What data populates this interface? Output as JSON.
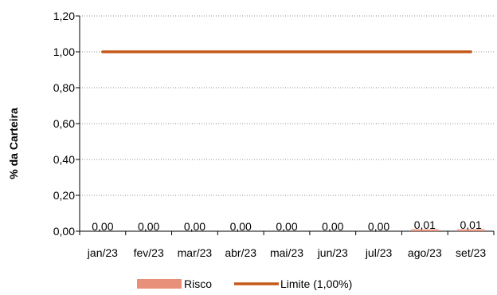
{
  "chart_data": {
    "type": "bar",
    "title": "",
    "xlabel": "",
    "ylabel": "% da Carteira",
    "ylim": [
      0,
      1.2
    ],
    "yticks": [
      0,
      0.2,
      0.4,
      0.6,
      0.8,
      1.0,
      1.2
    ],
    "ytick_labels": [
      "0,00",
      "0,20",
      "0,40",
      "0,60",
      "0,80",
      "1,00",
      "1,20"
    ],
    "categories": [
      "jan/23",
      "fev/23",
      "mar/23",
      "abr/23",
      "mai/23",
      "jun/23",
      "jul/23",
      "ago/23",
      "set/23"
    ],
    "grid": true,
    "legend_position": "bottom",
    "series": [
      {
        "name": "Risco",
        "kind": "bar",
        "color": "#E8907A",
        "values": [
          0.0,
          0.0,
          0.0,
          0.0,
          0.0,
          0.0,
          0.0,
          0.01,
          0.01
        ],
        "labels": [
          "0,00",
          "0,00",
          "0,00",
          "0,00",
          "0,00",
          "0,00",
          "0,00",
          "0,01",
          "0,01"
        ]
      },
      {
        "name": "Limite (1,00%)",
        "kind": "line",
        "color": "#C5591A",
        "values": [
          1.0,
          1.0,
          1.0,
          1.0,
          1.0,
          1.0,
          1.0,
          1.0,
          1.0
        ]
      }
    ]
  }
}
